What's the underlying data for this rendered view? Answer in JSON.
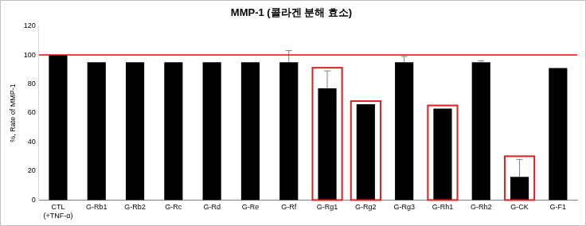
{
  "chart_data": {
    "type": "bar",
    "title": "MMP-1 (콜라겐 분해 효소)",
    "y_label": "%, Rate of MMP-1",
    "categories": [
      "CTL (+TNF-α)",
      "G-Rb1",
      "G-Rb2",
      "G-Rc",
      "G-Rd",
      "G-Re",
      "G-Rf",
      "G-Rg1",
      "G-Rg2",
      "G-Rg3",
      "G-Rh1",
      "G-Rh2",
      "G-CK",
      "G-F1"
    ],
    "values": [
      100,
      95,
      95,
      95,
      95,
      95,
      95,
      77,
      66,
      95,
      63,
      95,
      16,
      91
    ],
    "errors": [
      0,
      0,
      0,
      0,
      0,
      0,
      8,
      12,
      0,
      4,
      0,
      1,
      12,
      0
    ],
    "color": "#000000",
    "reference_line": 100,
    "highlighted": [
      "G-Rg1",
      "G-Rg2",
      "G-Rh1",
      "G-CK"
    ],
    "ylim": [
      0,
      120
    ],
    "yticks": [
      0,
      20,
      40,
      60,
      80,
      100,
      120
    ],
    "grid": false
  }
}
